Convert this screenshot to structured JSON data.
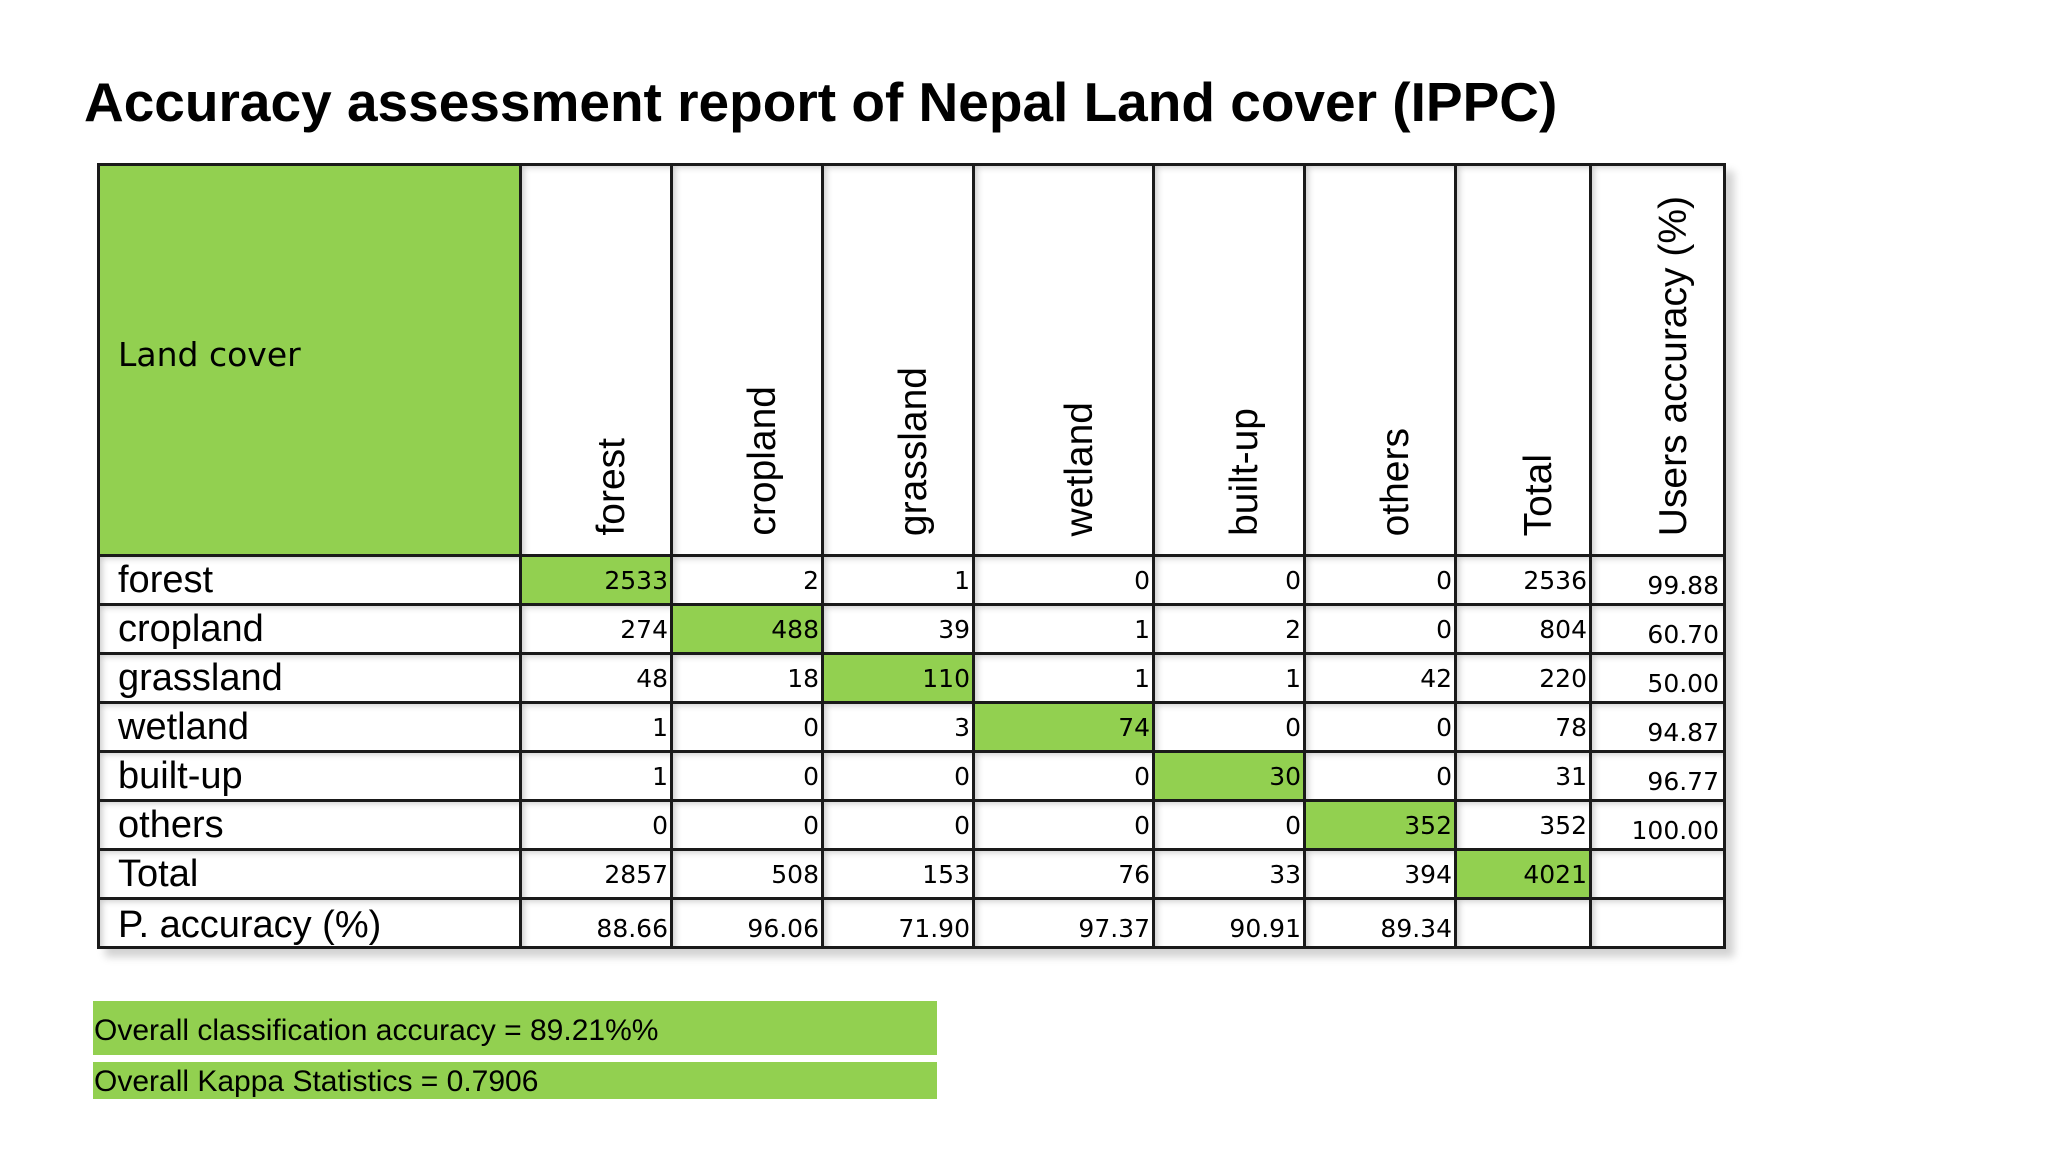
{
  "title": "Accuracy assessment report of Nepal Land cover (IPPC)",
  "table": {
    "corner_label": "Land cover",
    "column_headers": [
      "forest",
      "cropland",
      "grassland",
      "wetland",
      "built-up",
      "others",
      "Total",
      "Users accuracy (%)"
    ],
    "rows": [
      {
        "label": "forest",
        "cells": [
          "2533",
          "2",
          "1",
          "0",
          "0",
          "0",
          "2536",
          "99.88"
        ]
      },
      {
        "label": "cropland",
        "cells": [
          "274",
          "488",
          "39",
          "1",
          "2",
          "0",
          "804",
          "60.70"
        ]
      },
      {
        "label": "grassland",
        "cells": [
          "48",
          "18",
          "110",
          "1",
          "1",
          "42",
          "220",
          "50.00"
        ]
      },
      {
        "label": "wetland",
        "cells": [
          "1",
          "0",
          "3",
          "74",
          "0",
          "0",
          "78",
          "94.87"
        ]
      },
      {
        "label": "built-up",
        "cells": [
          "1",
          "0",
          "0",
          "0",
          "30",
          "0",
          "31",
          "96.77"
        ]
      },
      {
        "label": "others",
        "cells": [
          "0",
          "0",
          "0",
          "0",
          "0",
          "352",
          "352",
          "100.00"
        ]
      },
      {
        "label": "Total",
        "cells": [
          "2857",
          "508",
          "153",
          "76",
          "33",
          "394",
          "4021",
          ""
        ]
      },
      {
        "label": "P. accuracy (%)",
        "cells": [
          "88.66",
          "96.06",
          "71.90",
          "97.37",
          "90.91",
          "89.34",
          "",
          ""
        ]
      }
    ]
  },
  "summary": {
    "overall_accuracy": "Overall classification accuracy = 89.21%%",
    "kappa": "Overall Kappa Statistics = 0.7906"
  },
  "colors": {
    "highlight": "#92d050",
    "border": "#1a1a1a"
  }
}
